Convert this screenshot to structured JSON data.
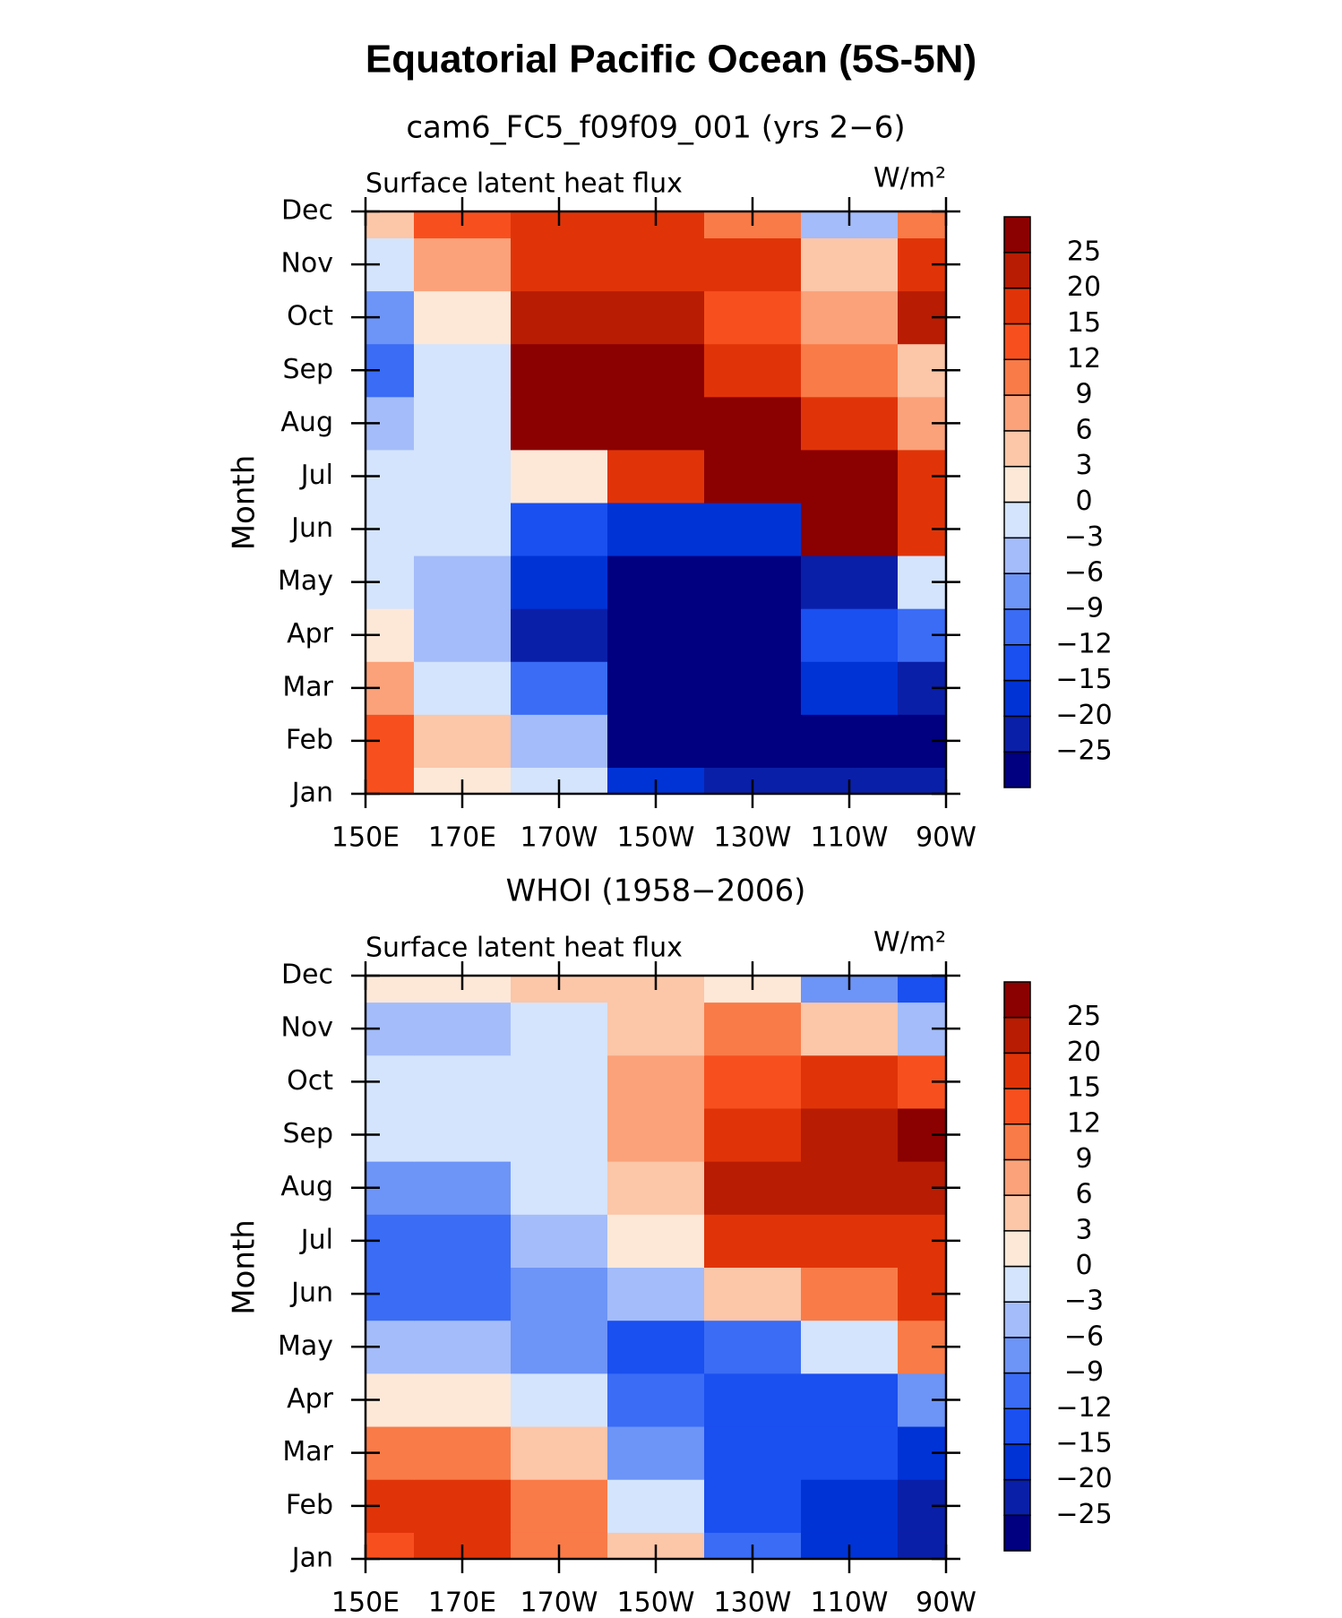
{
  "title": "Equatorial Pacific Ocean (5S-5N)",
  "chart_data": [
    {
      "type": "contour",
      "title": "cam6_FC5_f09f09_001 (yrs 2−6)",
      "left_label": "Surface latent heat flux",
      "units": "W/m²",
      "y_label": "Month",
      "categories": [
        "Jan",
        "Feb",
        "Mar",
        "Apr",
        "May",
        "Jun",
        "Jul",
        "Aug",
        "Sep",
        "Oct",
        "Nov",
        "Dec"
      ],
      "x": [
        150,
        170,
        190,
        210,
        230,
        250,
        270
      ],
      "xlim": [
        150,
        270
      ],
      "xticks": [
        {
          "value": 150,
          "label": "150E"
        },
        {
          "value": 170,
          "label": "170E"
        },
        {
          "value": 190,
          "label": "170W"
        },
        {
          "value": 210,
          "label": "150W"
        },
        {
          "value": 230,
          "label": "130W"
        },
        {
          "value": 250,
          "label": "110W"
        },
        {
          "value": 270,
          "label": "90W"
        }
      ],
      "values": [
        [
          12,
          0,
          -3,
          -20,
          -25,
          -25,
          -25
        ],
        [
          14,
          3,
          -6,
          -28,
          -28,
          -28,
          -28
        ],
        [
          8,
          -3,
          -12,
          -28,
          -28,
          -20,
          -22
        ],
        [
          0,
          -6,
          -25,
          -28,
          -28,
          -15,
          -12
        ],
        [
          -3,
          -6,
          -20,
          -28,
          -28,
          -25,
          -3
        ],
        [
          -3,
          -3,
          -15,
          -18,
          -20,
          25,
          15
        ],
        [
          -3,
          -3,
          0,
          15,
          28,
          28,
          15
        ],
        [
          -6,
          -3,
          28,
          28,
          25,
          15,
          6
        ],
        [
          -12,
          -3,
          28,
          28,
          15,
          9,
          3
        ],
        [
          -9,
          0,
          20,
          20,
          12,
          6,
          20
        ],
        [
          -3,
          6,
          18,
          15,
          15,
          3,
          15
        ],
        [
          3,
          12,
          18,
          15,
          9,
          -6,
          9
        ]
      ],
      "levels": [
        {
          "value": -25,
          "label": "−25"
        },
        {
          "value": -20,
          "label": "−20"
        },
        {
          "value": -15,
          "label": "−15"
        },
        {
          "value": -12,
          "label": "−12"
        },
        {
          "value": -9,
          "label": "−9"
        },
        {
          "value": -6,
          "label": "−6"
        },
        {
          "value": -3,
          "label": "−3"
        },
        0,
        3,
        6,
        9,
        12,
        15,
        20,
        25
      ],
      "colors": [
        "#000080",
        "#0a1fa8",
        "#0033d6",
        "#1a4ff0",
        "#3a6cf5",
        "#6d94f7",
        "#a4bcf9",
        "#d4e4fc",
        "#fde8d8",
        "#fcc6a8",
        "#fba27a",
        "#f97b48",
        "#f7501e",
        "#e03408",
        "#b81c02",
        "#8b0000"
      ]
    },
    {
      "type": "contour",
      "title": "WHOI (1958−2006)",
      "left_label": "Surface latent heat flux",
      "units": "W/m²",
      "y_label": "Month",
      "categories": [
        "Jan",
        "Feb",
        "Mar",
        "Apr",
        "May",
        "Jun",
        "Jul",
        "Aug",
        "Sep",
        "Oct",
        "Nov",
        "Dec"
      ],
      "x": [
        150,
        170,
        190,
        210,
        230,
        250,
        270
      ],
      "xlim": [
        150,
        270
      ],
      "xticks": [
        {
          "value": 150,
          "label": "150E"
        },
        {
          "value": 170,
          "label": "170E"
        },
        {
          "value": 190,
          "label": "170W"
        },
        {
          "value": 210,
          "label": "150W"
        },
        {
          "value": 230,
          "label": "130W"
        },
        {
          "value": 250,
          "label": "110W"
        },
        {
          "value": 270,
          "label": "90W"
        }
      ],
      "values": [
        [
          12,
          15,
          9,
          3,
          -12,
          -20,
          -25
        ],
        [
          15,
          15,
          9,
          -3,
          -15,
          -20,
          -25
        ],
        [
          9,
          9,
          3,
          -9,
          -15,
          -15,
          -20
        ],
        [
          0,
          0,
          -3,
          -12,
          -15,
          -15,
          -9
        ],
        [
          -6,
          -6,
          -9,
          -15,
          -12,
          -3,
          9
        ],
        [
          -12,
          -12,
          -9,
          -6,
          3,
          9,
          15
        ],
        [
          -12,
          -12,
          -6,
          0,
          15,
          18,
          15
        ],
        [
          -9,
          -9,
          -3,
          3,
          20,
          20,
          20
        ],
        [
          -3,
          -3,
          -3,
          6,
          15,
          20,
          25
        ],
        [
          -3,
          -3,
          -3,
          6,
          12,
          15,
          12
        ],
        [
          -6,
          -6,
          -3,
          3,
          9,
          3,
          -6
        ],
        [
          0,
          0,
          3,
          3,
          0,
          -9,
          -15
        ]
      ],
      "levels": [
        {
          "value": -25,
          "label": "−25"
        },
        {
          "value": -20,
          "label": "−20"
        },
        {
          "value": -15,
          "label": "−15"
        },
        {
          "value": -12,
          "label": "−12"
        },
        {
          "value": -9,
          "label": "−9"
        },
        {
          "value": -6,
          "label": "−6"
        },
        {
          "value": -3,
          "label": "−3"
        },
        0,
        3,
        6,
        9,
        12,
        15,
        20,
        25
      ],
      "colors": [
        "#000080",
        "#0a1fa8",
        "#0033d6",
        "#1a4ff0",
        "#3a6cf5",
        "#6d94f7",
        "#a4bcf9",
        "#d4e4fc",
        "#fde8d8",
        "#fcc6a8",
        "#fba27a",
        "#f97b48",
        "#f7501e",
        "#e03408",
        "#b81c02",
        "#8b0000"
      ]
    }
  ]
}
